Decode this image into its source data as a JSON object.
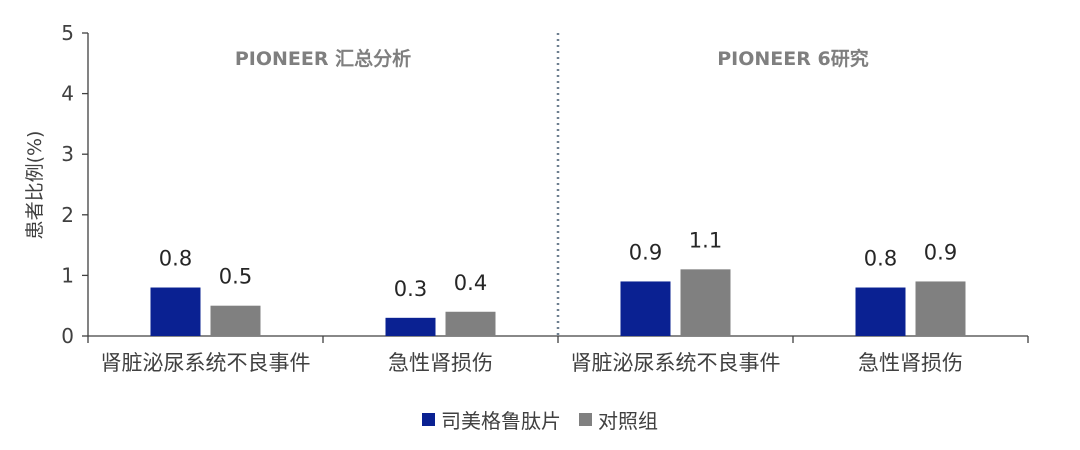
{
  "chart_data": {
    "type": "bar",
    "ylabel": "患者比例(%)",
    "ylim": [
      0,
      5
    ],
    "yticks": [
      "0",
      "1",
      "2",
      "3",
      "4",
      "5"
    ],
    "categories": [
      "肾脏泌尿系统不良事件",
      "急性肾损伤",
      "肾脏泌尿系统不良事件",
      "急性肾损伤"
    ],
    "panels": [
      {
        "title": "PIONEER 汇总分析",
        "categories": [
          0,
          1
        ]
      },
      {
        "title": "PIONEER 6研究",
        "categories": [
          2,
          3
        ]
      }
    ],
    "series": [
      {
        "name": "司美格鲁肽片",
        "color": "#0a2192",
        "values": [
          0.8,
          0.3,
          0.9,
          0.8
        ],
        "labels": [
          "0.8",
          "0.3",
          "0.9",
          "0.8"
        ]
      },
      {
        "name": "对照组",
        "color": "#808080",
        "values": [
          0.5,
          0.4,
          1.1,
          0.9
        ],
        "labels": [
          "0.5",
          "0.4",
          "1.1",
          "0.9"
        ]
      }
    ],
    "grid": false,
    "legend_position": "bottom"
  }
}
